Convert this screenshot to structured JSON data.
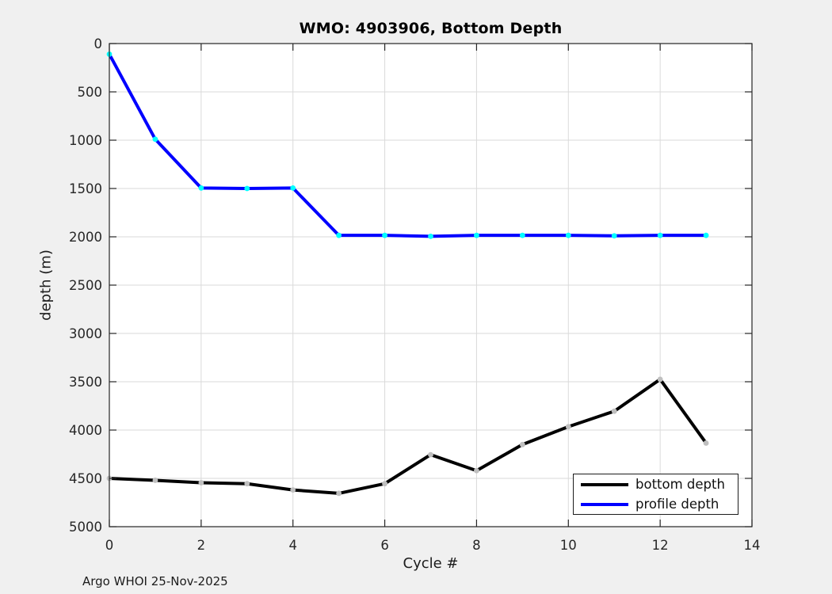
{
  "footer": {
    "text": "Argo WHOI 25-Nov-2025"
  },
  "colors": {
    "figure_background": "#f0f0f0",
    "plot_background": "#ffffff",
    "axis": "#262626",
    "grid": "#dadada",
    "tick_label": "#262626"
  },
  "chart_data": {
    "type": "line",
    "title": "WMO: 4903906, Bottom Depth",
    "xlabel": "Cycle #",
    "ylabel": "depth (m)",
    "xlim": [
      0,
      14
    ],
    "ylim": [
      0,
      5000
    ],
    "y_axis_reversed": true,
    "grid": true,
    "legend_position": "bottom-right",
    "xticks": [
      0,
      2,
      4,
      6,
      8,
      10,
      12,
      14
    ],
    "yticks": [
      0,
      500,
      1000,
      1500,
      2000,
      2500,
      3000,
      3500,
      4000,
      4500,
      5000
    ],
    "x": [
      0,
      1,
      2,
      3,
      4,
      5,
      6,
      7,
      8,
      9,
      10,
      11,
      12,
      13
    ],
    "series": [
      {
        "name": "bottom depth",
        "color": "#000000",
        "marker_color": "#bfbfbf",
        "values": [
          4500,
          4520,
          4545,
          4555,
          4620,
          4655,
          4555,
          4255,
          4420,
          4150,
          3965,
          3805,
          3475,
          4135
        ]
      },
      {
        "name": "profile depth",
        "color": "#0000ff",
        "marker_color": "#00ffff",
        "values": [
          110,
          990,
          1495,
          1500,
          1495,
          1985,
          1985,
          1995,
          1985,
          1985,
          1985,
          1990,
          1985,
          1985
        ]
      }
    ]
  }
}
